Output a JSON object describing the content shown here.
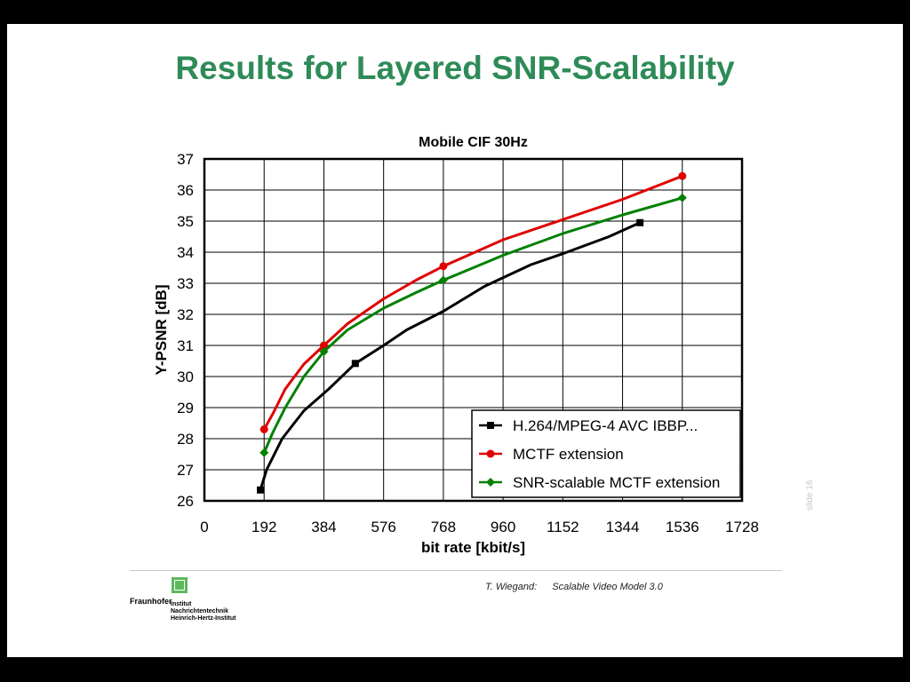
{
  "slide": {
    "title": "Results for Layered SNR-Scalability",
    "slide_number": "slide 16",
    "footer": {
      "author": "T. Wiegand:",
      "subject": "Scalable Video Model 3.0"
    },
    "logo": {
      "brand": "Fraunhofer",
      "lines": [
        "Institut",
        "Nachrichtentechnik",
        "Heinrich-Hertz-Institut"
      ],
      "color": "#5cb85c"
    }
  },
  "chart_data": {
    "type": "line",
    "title": "Mobile CIF 30Hz",
    "xlabel": "bit rate [kbit/s]",
    "ylabel": "Y-PSNR [dB]",
    "xlim": [
      0,
      1728
    ],
    "ylim": [
      26,
      37
    ],
    "xticks": [
      0,
      192,
      384,
      576,
      768,
      960,
      1152,
      1344,
      1536,
      1728
    ],
    "yticks": [
      26,
      27,
      28,
      29,
      30,
      31,
      32,
      33,
      34,
      35,
      36,
      37
    ],
    "grid": true,
    "legend_position": "bottom-right",
    "series": [
      {
        "name": "H.264/MPEG-4 AVC IBBP...",
        "color": "#000000",
        "marker": "square",
        "points": [
          [
            180,
            26.35
          ],
          [
            485,
            30.42
          ],
          [
            1400,
            34.95
          ]
        ],
        "curve": [
          [
            180,
            26.35
          ],
          [
            200,
            27.0
          ],
          [
            250,
            28.0
          ],
          [
            320,
            28.9
          ],
          [
            400,
            29.6
          ],
          [
            485,
            30.42
          ],
          [
            576,
            31.0
          ],
          [
            650,
            31.5
          ],
          [
            768,
            32.1
          ],
          [
            900,
            32.9
          ],
          [
            1050,
            33.6
          ],
          [
            1152,
            33.95
          ],
          [
            1300,
            34.5
          ],
          [
            1400,
            34.95
          ]
        ]
      },
      {
        "name": "MCTF extension",
        "color": "#e00000",
        "marker": "circle",
        "points": [
          [
            192,
            28.3
          ],
          [
            384,
            31.0
          ],
          [
            768,
            33.55
          ],
          [
            1536,
            36.45
          ]
        ],
        "curve": [
          [
            192,
            28.3
          ],
          [
            220,
            28.8
          ],
          [
            260,
            29.6
          ],
          [
            320,
            30.4
          ],
          [
            384,
            31.0
          ],
          [
            460,
            31.7
          ],
          [
            576,
            32.5
          ],
          [
            680,
            33.1
          ],
          [
            768,
            33.55
          ],
          [
            960,
            34.4
          ],
          [
            1152,
            35.05
          ],
          [
            1344,
            35.7
          ],
          [
            1536,
            36.45
          ]
        ]
      },
      {
        "name": "SNR-scalable MCTF extension",
        "color": "#008000",
        "marker": "diamond",
        "points": [
          [
            192,
            27.55
          ],
          [
            384,
            30.8
          ],
          [
            768,
            33.1
          ],
          [
            1536,
            35.75
          ]
        ],
        "curve": [
          [
            192,
            27.55
          ],
          [
            220,
            28.2
          ],
          [
            260,
            29.0
          ],
          [
            320,
            30.0
          ],
          [
            384,
            30.8
          ],
          [
            460,
            31.5
          ],
          [
            576,
            32.2
          ],
          [
            680,
            32.7
          ],
          [
            768,
            33.1
          ],
          [
            960,
            33.9
          ],
          [
            1152,
            34.6
          ],
          [
            1344,
            35.2
          ],
          [
            1536,
            35.75
          ]
        ]
      }
    ]
  }
}
